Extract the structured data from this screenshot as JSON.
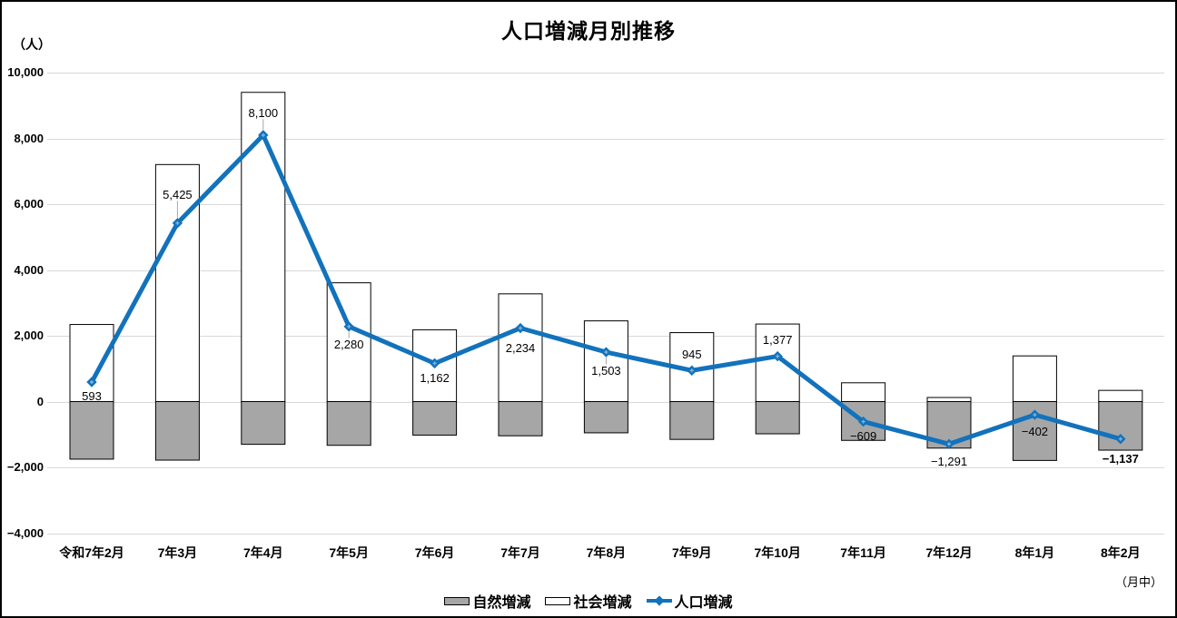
{
  "chart": {
    "title": "人口増減月別推移",
    "unit_label": "（人）",
    "axis_note": "（月中）"
  },
  "legend": {
    "natural_label": "自然増減",
    "social_label": "社会増減",
    "total_label": "人口増減"
  },
  "colors": {
    "line_blue": "#1272bc",
    "marker_cross": "#7fb3da",
    "bar_gray": "#a6a6a6",
    "bar_white": "#ffffff",
    "bar_border": "#000000",
    "gridline": "#d9d9d9",
    "leader_gray": "#a6a6a6"
  },
  "chart_data": {
    "type": "combo-bar-line",
    "title": "人口増減月別推移",
    "ylabel": "（人）",
    "categories": [
      "令和7年2月",
      "7年3月",
      "7年4月",
      "7年5月",
      "7年6月",
      "7年7月",
      "7年8月",
      "7年9月",
      "7年10月",
      "7年11月",
      "7年12月",
      "8年1月",
      "8年2月"
    ],
    "series": [
      {
        "name": "自然増減",
        "type": "bar",
        "color": "#a6a6a6",
        "values": [
          -1750,
          -1780,
          -1300,
          -1330,
          -1020,
          -1040,
          -950,
          -1150,
          -980,
          -1180,
          -1415,
          -1790,
          -1477
        ]
      },
      {
        "name": "社会増減",
        "type": "bar",
        "color": "#ffffff",
        "values": [
          2343,
          7205,
          9400,
          3610,
          2182,
          3274,
          2453,
          2095,
          2357,
          571,
          124,
          1388,
          340
        ]
      },
      {
        "name": "人口増減",
        "type": "line",
        "color": "#1272bc",
        "values": [
          593,
          5425,
          8100,
          2280,
          1162,
          2234,
          1503,
          945,
          1377,
          -609,
          -1291,
          -402,
          -1137
        ],
        "labels": [
          "593",
          "5,425",
          "8,100",
          "2,280",
          "1,162",
          "2,234",
          "1,503",
          "945",
          "1,377",
          "−609",
          "−1,291",
          "−402",
          "−1,137"
        ],
        "label_dy": [
          9,
          -38,
          -31,
          13,
          10,
          15,
          14,
          -24,
          -25,
          9,
          13,
          12,
          15
        ],
        "label_leader": [
          false,
          true,
          true,
          true,
          false,
          false,
          true,
          false,
          false,
          false,
          false,
          false,
          false
        ],
        "label_bold": [
          false,
          false,
          false,
          false,
          false,
          false,
          false,
          false,
          false,
          false,
          false,
          false,
          true
        ]
      }
    ],
    "y_axis": {
      "min": -4000,
      "max": 10000,
      "step": 2000,
      "tick_labels": [
        "10,000",
        "8,000",
        "6,000",
        "4,000",
        "2,000",
        "0",
        "−2,000",
        "−4,000"
      ]
    },
    "grid": true,
    "legend_position": "bottom",
    "note": "（月中）"
  }
}
